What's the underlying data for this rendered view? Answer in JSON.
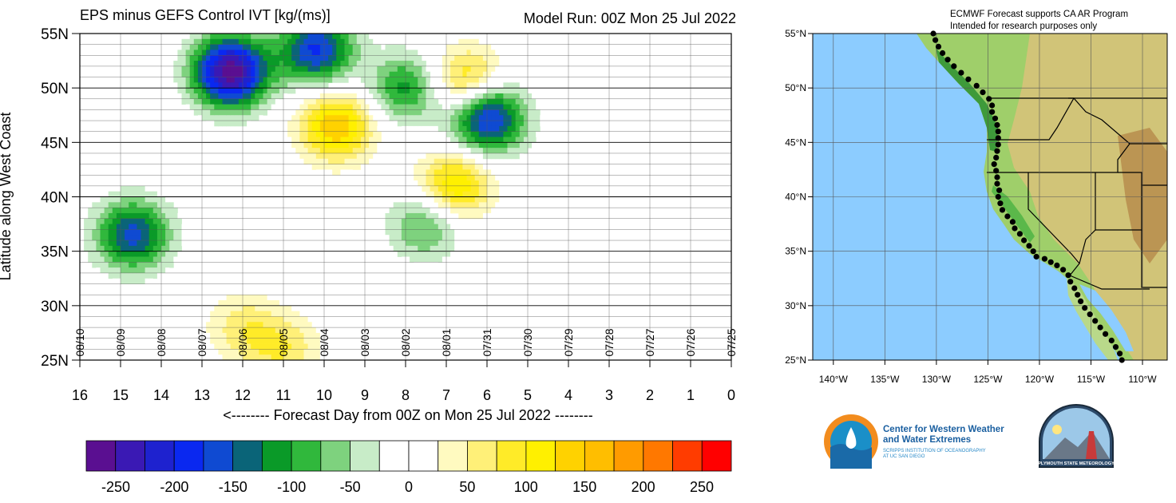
{
  "chart_data": [
    {
      "type": "heatmap",
      "title": "EPS minus GEFS Control IVT [kg/(ms)]",
      "subtitle": "Model Run: 00Z Mon 25 Jul 2022",
      "xlabel": "<-------- Forecast Day from 00Z on Mon 25 Jul 2022 --------",
      "ylabel": "Latitude along West Coast",
      "x_ticks": [
        "16",
        "15",
        "14",
        "13",
        "12",
        "11",
        "10",
        "9",
        "8",
        "7",
        "6",
        "5",
        "4",
        "3",
        "2",
        "1",
        "0"
      ],
      "xlim": [
        16,
        0
      ],
      "y_ticks": [
        "25N",
        "30N",
        "35N",
        "40N",
        "45N",
        "50N",
        "55N"
      ],
      "ylim": [
        25,
        55
      ],
      "date_labels": [
        "08/10",
        "08/09",
        "08/08",
        "08/07",
        "08/06",
        "08/05",
        "08/04",
        "08/03",
        "08/02",
        "08/01",
        "07/31",
        "07/30",
        "07/29",
        "07/28",
        "07/27",
        "07/26",
        "07/25"
      ],
      "colorbar": {
        "ticks": [
          "-250",
          "-200",
          "-150",
          "-100",
          "-50",
          "0",
          "50",
          "100",
          "150",
          "200",
          "250"
        ],
        "colors": [
          "#5a0f91",
          "#3a19b4",
          "#1e22cf",
          "#0a28f0",
          "#0f4ad2",
          "#0a6478",
          "#0a9a28",
          "#30b83c",
          "#7ed27e",
          "#c8ecc8",
          "#ffffff",
          "#ffffff",
          "#fffac0",
          "#fff078",
          "#ffeb28",
          "#fff000",
          "#ffd200",
          "#ffbe00",
          "#ff9b00",
          "#ff7800",
          "#ff3c00",
          "#ff0000"
        ]
      },
      "anomalies": [
        {
          "day": 12.3,
          "lat": 51.5,
          "value": -270
        },
        {
          "day": 10.2,
          "lat": 53.5,
          "value": -180
        },
        {
          "day": 6.0,
          "lat": 47.3,
          "value": -200
        },
        {
          "day": 14.7,
          "lat": 36.5,
          "value": -160
        },
        {
          "day": 8.0,
          "lat": 50.0,
          "value": -110
        },
        {
          "day": 9.7,
          "lat": 46.5,
          "value": 150
        },
        {
          "day": 6.5,
          "lat": 50.5,
          "value": 120
        },
        {
          "day": 6.8,
          "lat": 41.0,
          "value": 130
        },
        {
          "day": 12.0,
          "lat": 28.0,
          "value": 60
        },
        {
          "day": 11.0,
          "lat": 26.0,
          "value": 70
        },
        {
          "day": 7.5,
          "lat": 37.5,
          "value": -90
        }
      ]
    },
    {
      "type": "map",
      "note_line1": "ECMWF Forecast supports CA AR Program",
      "note_line2": "Intended for research purposes only",
      "lat_ticks": [
        "55°N",
        "50°N",
        "45°N",
        "40°N",
        "35°N",
        "30°N",
        "25°N"
      ],
      "lon_ticks": [
        "140°W",
        "135°W",
        "130°W",
        "125°W",
        "120°W",
        "115°W",
        "110°W"
      ]
    }
  ],
  "logos": {
    "cw3e_line1": "Center for Western Weather",
    "cw3e_line2": "and Water Extremes",
    "cw3e_line3": "SCRIPPS INSTITUTION OF OCEANOGRAPHY",
    "cw3e_line4": "AT UC SAN DIEGO",
    "psu_text": "PLYMOUTH STATE METEOROLOGY"
  }
}
